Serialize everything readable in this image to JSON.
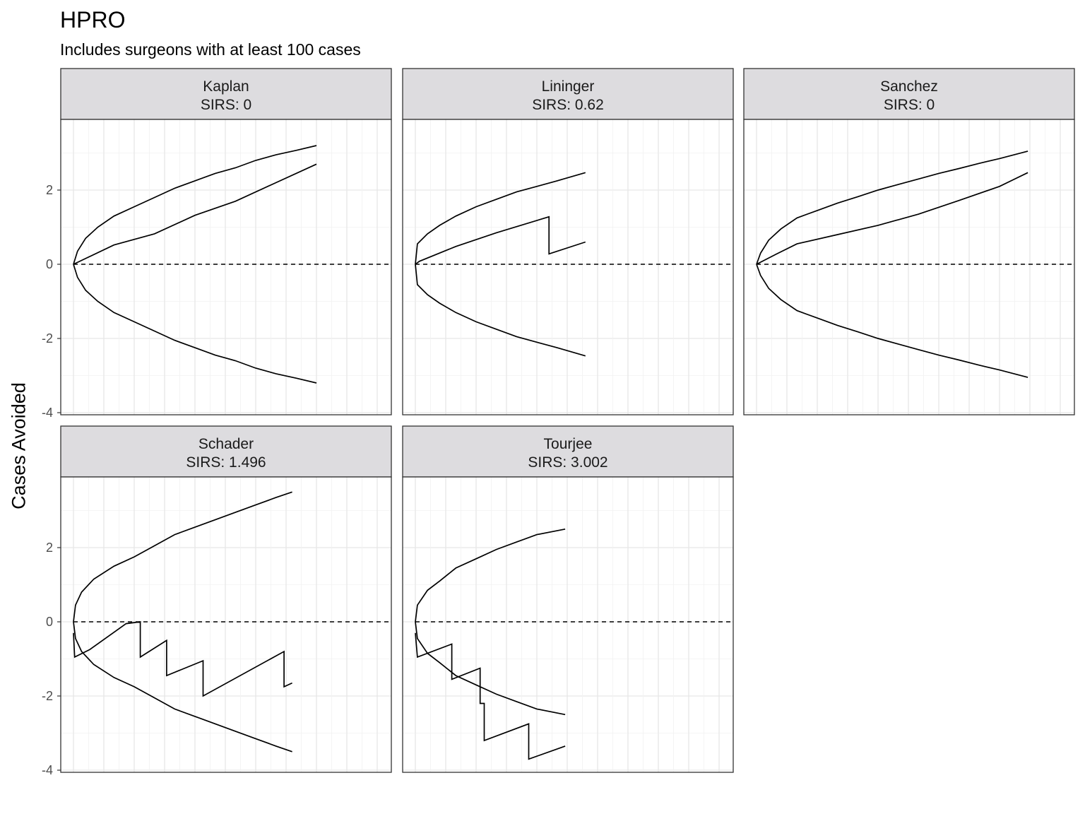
{
  "title": "HPRO",
  "subtitle": "Includes surgeons with at least 100 cases",
  "chart_data": {
    "type": "line",
    "title": "HPRO",
    "subtitle": "Includes surgeons with at least 100 cases",
    "xlabel": "",
    "ylabel": "Cases Avoided",
    "ylim": [
      -4,
      4
    ],
    "yticks": [
      -4,
      -2,
      0,
      2
    ],
    "x_ticks_shown": false,
    "grid": true,
    "reference_line": {
      "y": 0,
      "style": "dashed"
    },
    "panels": [
      {
        "name": "Kaplan",
        "label": "Kaplan",
        "sirs_label": "SIRS:  0",
        "upper": [
          [
            0,
            0
          ],
          [
            1,
            0.35
          ],
          [
            3,
            0.7
          ],
          [
            6,
            1.0
          ],
          [
            10,
            1.3
          ],
          [
            15,
            1.55
          ],
          [
            20,
            1.8
          ],
          [
            25,
            2.05
          ],
          [
            30,
            2.25
          ],
          [
            35,
            2.45
          ],
          [
            40,
            2.6
          ],
          [
            45,
            2.8
          ],
          [
            50,
            2.95
          ],
          [
            55,
            3.07
          ],
          [
            60,
            3.2
          ]
        ],
        "lower": [
          [
            0,
            0
          ],
          [
            1,
            -0.35
          ],
          [
            3,
            -0.7
          ],
          [
            6,
            -1.0
          ],
          [
            10,
            -1.3
          ],
          [
            15,
            -1.55
          ],
          [
            20,
            -1.8
          ],
          [
            25,
            -2.05
          ],
          [
            30,
            -2.25
          ],
          [
            35,
            -2.45
          ],
          [
            40,
            -2.6
          ],
          [
            45,
            -2.8
          ],
          [
            50,
            -2.95
          ],
          [
            55,
            -3.07
          ],
          [
            60,
            -3.2
          ]
        ],
        "cases": [
          [
            0,
            0
          ],
          [
            10,
            0.52
          ],
          [
            20,
            0.82
          ],
          [
            30,
            1.32
          ],
          [
            40,
            1.7
          ],
          [
            50,
            2.2
          ],
          [
            60,
            2.7
          ]
        ]
      },
      {
        "name": "Lininger",
        "label": "Lininger",
        "sirs_label": "SIRS:  0.62",
        "upper": [
          [
            0,
            0
          ],
          [
            0.5,
            0.55
          ],
          [
            3,
            0.82
          ],
          [
            6,
            1.05
          ],
          [
            10,
            1.3
          ],
          [
            15,
            1.55
          ],
          [
            20,
            1.75
          ],
          [
            25,
            1.95
          ],
          [
            30,
            2.1
          ],
          [
            35,
            2.25
          ],
          [
            42,
            2.47
          ]
        ],
        "lower": [
          [
            0,
            0
          ],
          [
            0.5,
            -0.55
          ],
          [
            3,
            -0.82
          ],
          [
            6,
            -1.05
          ],
          [
            10,
            -1.3
          ],
          [
            15,
            -1.55
          ],
          [
            20,
            -1.75
          ],
          [
            25,
            -1.95
          ],
          [
            30,
            -2.1
          ],
          [
            35,
            -2.25
          ],
          [
            42,
            -2.47
          ]
        ],
        "cases": [
          [
            0,
            0
          ],
          [
            1,
            0.08
          ],
          [
            10,
            0.48
          ],
          [
            20,
            0.85
          ],
          [
            33,
            1.28
          ],
          [
            33,
            0.28
          ],
          [
            42,
            0.6
          ]
        ]
      },
      {
        "name": "Sanchez",
        "label": "Sanchez",
        "sirs_label": "SIRS:  0",
        "upper": [
          [
            0,
            0
          ],
          [
            1,
            0.3
          ],
          [
            3,
            0.65
          ],
          [
            6,
            0.95
          ],
          [
            10,
            1.25
          ],
          [
            15,
            1.45
          ],
          [
            20,
            1.65
          ],
          [
            25,
            1.82
          ],
          [
            30,
            2.0
          ],
          [
            35,
            2.15
          ],
          [
            40,
            2.3
          ],
          [
            45,
            2.45
          ],
          [
            50,
            2.58
          ],
          [
            55,
            2.72
          ],
          [
            60,
            2.85
          ],
          [
            67,
            3.05
          ]
        ],
        "lower": [
          [
            0,
            0
          ],
          [
            1,
            -0.3
          ],
          [
            3,
            -0.65
          ],
          [
            6,
            -0.95
          ],
          [
            10,
            -1.25
          ],
          [
            15,
            -1.45
          ],
          [
            20,
            -1.65
          ],
          [
            25,
            -1.82
          ],
          [
            30,
            -2.0
          ],
          [
            35,
            -2.15
          ],
          [
            40,
            -2.3
          ],
          [
            45,
            -2.45
          ],
          [
            50,
            -2.58
          ],
          [
            55,
            -2.72
          ],
          [
            60,
            -2.85
          ],
          [
            67,
            -3.05
          ]
        ],
        "cases": [
          [
            0,
            0
          ],
          [
            5,
            0.28
          ],
          [
            10,
            0.55
          ],
          [
            20,
            0.8
          ],
          [
            30,
            1.05
          ],
          [
            40,
            1.35
          ],
          [
            50,
            1.72
          ],
          [
            60,
            2.1
          ],
          [
            67,
            2.47
          ]
        ]
      },
      {
        "name": "Schader",
        "label": "Schader",
        "sirs_label": "SIRS:  1.496",
        "upper": [
          [
            0,
            0
          ],
          [
            0.5,
            0.45
          ],
          [
            2,
            0.8
          ],
          [
            5,
            1.15
          ],
          [
            10,
            1.5
          ],
          [
            15,
            1.75
          ],
          [
            20,
            2.05
          ],
          [
            25,
            2.35
          ],
          [
            30,
            2.55
          ],
          [
            35,
            2.75
          ],
          [
            40,
            2.95
          ],
          [
            45,
            3.15
          ],
          [
            50,
            3.35
          ],
          [
            54,
            3.5
          ]
        ],
        "lower": [
          [
            0,
            0
          ],
          [
            0.5,
            -0.45
          ],
          [
            2,
            -0.8
          ],
          [
            5,
            -1.15
          ],
          [
            10,
            -1.5
          ],
          [
            15,
            -1.75
          ],
          [
            20,
            -2.05
          ],
          [
            25,
            -2.35
          ],
          [
            30,
            -2.55
          ],
          [
            35,
            -2.75
          ],
          [
            40,
            -2.95
          ],
          [
            45,
            -3.15
          ],
          [
            50,
            -3.35
          ],
          [
            54,
            -3.5
          ]
        ],
        "cases": [
          [
            0,
            -0.3
          ],
          [
            0.3,
            -0.95
          ],
          [
            4,
            -0.75
          ],
          [
            13,
            -0.05
          ],
          [
            16.5,
            0
          ],
          [
            16.5,
            -0.95
          ],
          [
            23,
            -0.5
          ],
          [
            23,
            -1.45
          ],
          [
            32,
            -1.05
          ],
          [
            32,
            -2.0
          ],
          [
            52,
            -0.8
          ],
          [
            52,
            -1.75
          ],
          [
            54,
            -1.65
          ]
        ]
      },
      {
        "name": "Tourjee",
        "label": "Tourjee",
        "sirs_label": "SIRS:  3.002",
        "upper": [
          [
            0,
            0
          ],
          [
            0.5,
            0.45
          ],
          [
            3,
            0.85
          ],
          [
            6,
            1.1
          ],
          [
            10,
            1.45
          ],
          [
            15,
            1.7
          ],
          [
            20,
            1.95
          ],
          [
            25,
            2.15
          ],
          [
            30,
            2.35
          ],
          [
            37,
            2.5
          ]
        ],
        "lower": [
          [
            0,
            0
          ],
          [
            0.5,
            -0.45
          ],
          [
            3,
            -0.85
          ],
          [
            6,
            -1.1
          ],
          [
            10,
            -1.45
          ],
          [
            15,
            -1.7
          ],
          [
            20,
            -1.95
          ],
          [
            25,
            -2.15
          ],
          [
            30,
            -2.35
          ],
          [
            37,
            -2.5
          ]
        ],
        "cases": [
          [
            0,
            -0.3
          ],
          [
            0.5,
            -0.95
          ],
          [
            9,
            -0.6
          ],
          [
            9,
            -1.55
          ],
          [
            16,
            -1.25
          ],
          [
            16,
            -2.2
          ],
          [
            17,
            -2.2
          ],
          [
            17,
            -3.2
          ],
          [
            28,
            -2.75
          ],
          [
            28,
            -3.7
          ],
          [
            37,
            -3.35
          ]
        ]
      }
    ]
  }
}
